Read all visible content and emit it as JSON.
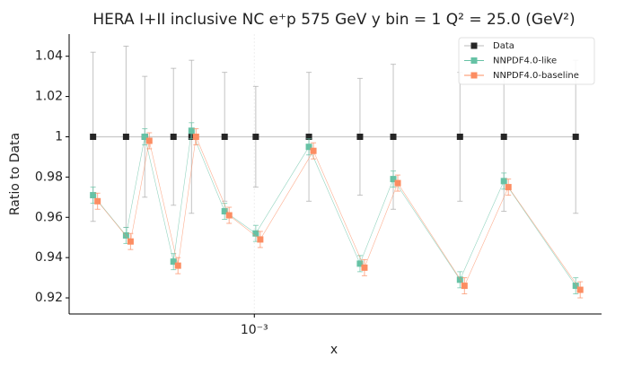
{
  "chart_data": {
    "type": "errorbar-line",
    "title": "HERA I+II inclusive NC e⁺p 575 GeV y bin = 1 Q² = 25.0 (GeV²)",
    "x_label": "x",
    "y_label": "Ratio to Data",
    "x_scale": "log",
    "x": [
      0.000327,
      0.000411,
      0.000468,
      0.000571,
      0.000647,
      0.000814,
      0.00101,
      0.00146,
      0.00208,
      0.00262,
      0.00416,
      0.00564,
      0.00928
    ],
    "series": [
      {
        "name": "Data",
        "color": "#262626",
        "values": [
          1.0,
          1.0,
          1.0,
          1.0,
          1.0,
          1.0,
          1.0,
          1.0,
          1.0,
          1.0,
          1.0,
          1.0,
          1.0
        ],
        "errors": [
          0.042,
          0.045,
          0.03,
          0.034,
          0.038,
          0.032,
          0.025,
          0.032,
          0.029,
          0.036,
          0.032,
          0.037,
          0.038
        ]
      },
      {
        "name": "NNPDF4.0-like",
        "color": "#66c2a5",
        "values": [
          0.971,
          0.951,
          1.0,
          0.938,
          1.003,
          0.963,
          0.952,
          0.995,
          0.937,
          0.979,
          0.929,
          0.978,
          0.926
        ],
        "errors": [
          0.004,
          0.004,
          0.004,
          0.004,
          0.004,
          0.004,
          0.004,
          0.004,
          0.004,
          0.004,
          0.004,
          0.004,
          0.004
        ]
      },
      {
        "name": "NNPDF4.0-baseline",
        "color": "#fc8d62",
        "values": [
          0.968,
          0.948,
          0.998,
          0.936,
          1.0,
          0.961,
          0.949,
          0.993,
          0.935,
          0.977,
          0.926,
          0.975,
          0.924
        ],
        "errors": [
          0.004,
          0.004,
          0.004,
          0.004,
          0.004,
          0.004,
          0.004,
          0.004,
          0.004,
          0.004,
          0.004,
          0.004,
          0.004
        ]
      }
    ],
    "xlim": [
      0.000277,
      0.0111
    ],
    "xticks": [
      {
        "value": 0.001,
        "label": "10⁻³"
      }
    ],
    "ylim": [
      0.912,
      1.051
    ],
    "yticks": [
      0.92,
      0.94,
      0.96,
      0.98,
      1.0,
      1.02,
      1.04
    ],
    "legend": "upper right"
  }
}
